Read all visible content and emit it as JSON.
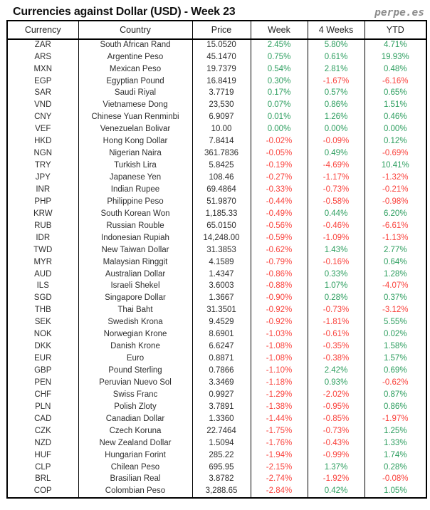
{
  "header": {
    "brand": "perpe.es"
  },
  "colors": {
    "positive": "#2d9e5f",
    "negative": "#fa423c",
    "border": "#000000",
    "title_text": "#111111",
    "body_text": "#2e2e2e",
    "brand_text": "#8c8c8c"
  },
  "chart_data": {
    "type": "table",
    "title": "Currencies against Dollar (USD) - Week 23",
    "columns": [
      "Currency",
      "Country",
      "Price",
      "Week",
      "4 Weeks",
      "YTD"
    ],
    "cell_names": [
      "currency-code-cell",
      "country-cell",
      "price-cell",
      "week-change-cell",
      "four-weeks-change-cell",
      "ytd-change-cell"
    ],
    "rows": [
      [
        "ZAR",
        "South African Rand",
        "15.0520",
        "2.45%",
        "5.80%",
        "4.71%"
      ],
      [
        "ARS",
        "Argentine Peso",
        "45.1470",
        "0.75%",
        "0.61%",
        "19.93%"
      ],
      [
        "MXN",
        "Mexican Peso",
        "19.7379",
        "0.54%",
        "2.81%",
        "0.48%"
      ],
      [
        "EGP",
        "Egyptian Pound",
        "16.8419",
        "0.30%",
        "-1.67%",
        "-6.16%"
      ],
      [
        "SAR",
        "Saudi Riyal",
        "3.7719",
        "0.17%",
        "0.57%",
        "0.65%"
      ],
      [
        "VND",
        "Vietnamese Dong",
        "23,530",
        "0.07%",
        "0.86%",
        "1.51%"
      ],
      [
        "CNY",
        "Chinese Yuan Renminbi",
        "6.9097",
        "0.01%",
        "1.26%",
        "0.46%"
      ],
      [
        "VEF",
        "Venezuelan Bolivar",
        "10.00",
        "0.00%",
        "0.00%",
        "0.00%"
      ],
      [
        "HKD",
        "Hong Kong Dollar",
        "7.8414",
        "-0.02%",
        "-0.09%",
        "0.12%"
      ],
      [
        "NGN",
        "Nigerian Naira",
        "361.7836",
        "-0.05%",
        "0.49%",
        "-0.69%"
      ],
      [
        "TRY",
        "Turkish Lira",
        "5.8425",
        "-0.19%",
        "-4.69%",
        "10.41%"
      ],
      [
        "JPY",
        "Japanese Yen",
        "108.46",
        "-0.27%",
        "-1.17%",
        "-1.32%"
      ],
      [
        "INR",
        "Indian Rupee",
        "69.4864",
        "-0.33%",
        "-0.73%",
        "-0.21%"
      ],
      [
        "PHP",
        "Philippine Peso",
        "51.9870",
        "-0.44%",
        "-0.58%",
        "-0.98%"
      ],
      [
        "KRW",
        "South Korean Won",
        "1,185.33",
        "-0.49%",
        "0.44%",
        "6.20%"
      ],
      [
        "RUB",
        "Russian Rouble",
        "65.0150",
        "-0.56%",
        "-0.46%",
        "-6.61%"
      ],
      [
        "IDR",
        "Indonesian Rupiah",
        "14,248.00",
        "-0.59%",
        "-1.09%",
        "-1.13%"
      ],
      [
        "TWD",
        "New Taiwan Dollar",
        "31.3853",
        "-0.62%",
        "1.43%",
        "2.77%"
      ],
      [
        "MYR",
        "Malaysian Ringgit",
        "4.1589",
        "-0.79%",
        "-0.16%",
        "0.64%"
      ],
      [
        "AUD",
        "Australian Dollar",
        "1.4347",
        "-0.86%",
        "0.33%",
        "1.28%"
      ],
      [
        "ILS",
        "Israeli Shekel",
        "3.6003",
        "-0.88%",
        "1.07%",
        "-4.07%"
      ],
      [
        "SGD",
        "Singapore Dollar",
        "1.3667",
        "-0.90%",
        "0.28%",
        "0.37%"
      ],
      [
        "THB",
        "Thai Baht",
        "31.3501",
        "-0.92%",
        "-0.73%",
        "-3.12%"
      ],
      [
        "SEK",
        "Swedish Krona",
        "9.4529",
        "-0.92%",
        "-1.81%",
        "5.55%"
      ],
      [
        "NOK",
        "Norwegian Krone",
        "8.6901",
        "-1.03%",
        "-0.61%",
        "0.02%"
      ],
      [
        "DKK",
        "Danish Krone",
        "6.6247",
        "-1.08%",
        "-0.35%",
        "1.58%"
      ],
      [
        "EUR",
        "Euro",
        "0.8871",
        "-1.08%",
        "-0.38%",
        "1.57%"
      ],
      [
        "GBP",
        "Pound Sterling",
        "0.7866",
        "-1.10%",
        "2.42%",
        "0.69%"
      ],
      [
        "PEN",
        "Peruvian Nuevo Sol",
        "3.3469",
        "-1.18%",
        "0.93%",
        "-0.62%"
      ],
      [
        "CHF",
        "Swiss Franc",
        "0.9927",
        "-1.29%",
        "-2.02%",
        "0.87%"
      ],
      [
        "PLN",
        "Polish Zloty",
        "3.7891",
        "-1.38%",
        "-0.95%",
        "0.86%"
      ],
      [
        "CAD",
        "Canadian Dollar",
        "1.3360",
        "-1.44%",
        "-0.85%",
        "-1.97%"
      ],
      [
        "CZK",
        "Czech Koruna",
        "22.7464",
        "-1.75%",
        "-0.73%",
        "1.25%"
      ],
      [
        "NZD",
        "New Zealand Dollar",
        "1.5094",
        "-1.76%",
        "-0.43%",
        "1.33%"
      ],
      [
        "HUF",
        "Hungarian Forint",
        "285.22",
        "-1.94%",
        "-0.99%",
        "1.74%"
      ],
      [
        "CLP",
        "Chilean Peso",
        "695.95",
        "-2.15%",
        "1.37%",
        "0.28%"
      ],
      [
        "BRL",
        "Brasilian Real",
        "3.8782",
        "-2.74%",
        "-1.92%",
        "-0.08%"
      ],
      [
        "COP",
        "Colombian Peso",
        "3,288.65",
        "-2.84%",
        "0.42%",
        "1.05%"
      ]
    ]
  }
}
